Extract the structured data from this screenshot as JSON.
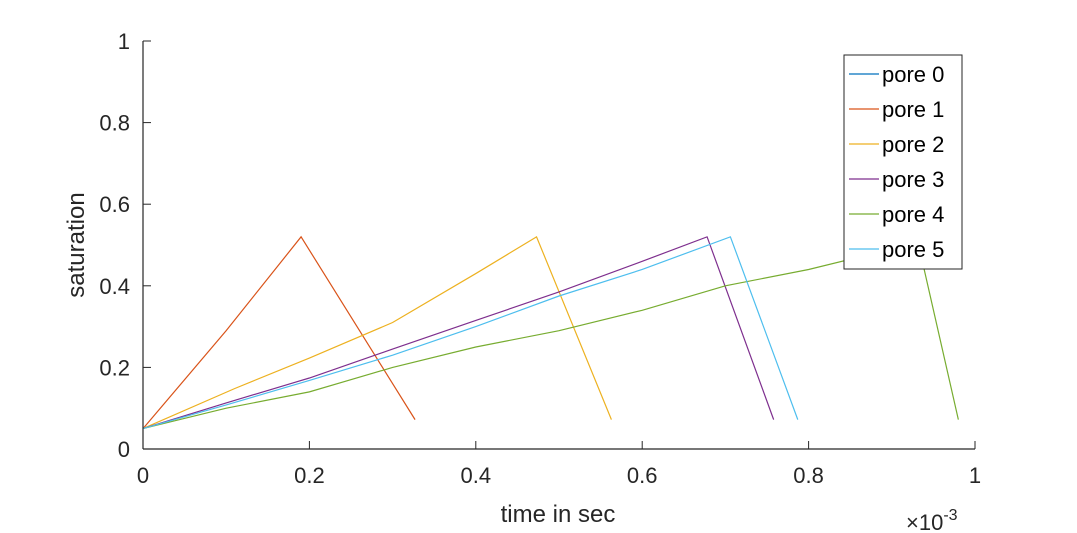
{
  "chart_data": {
    "type": "line",
    "title": "",
    "xlabel": "time in sec",
    "ylabel": "saturation",
    "x_exponent_label": "×10",
    "x_exponent_power": "-3",
    "xlim": [
      0,
      1
    ],
    "ylim": [
      0,
      1
    ],
    "x_ticks": [
      0,
      0.2,
      0.4,
      0.6,
      0.8,
      1
    ],
    "x_tick_labels": [
      "0",
      "0.2",
      "0.4",
      "0.6",
      "0.8",
      "1"
    ],
    "y_ticks": [
      0,
      0.2,
      0.4,
      0.6,
      0.8,
      1
    ],
    "y_tick_labels": [
      "0",
      "0.2",
      "0.4",
      "0.6",
      "0.8",
      "1"
    ],
    "grid": false,
    "legend_position": "top-right",
    "series": [
      {
        "name": "pore 0",
        "color": "#0072BD",
        "x": [
          0,
          0.003
        ],
        "y": [
          0.05,
          0.053
        ]
      },
      {
        "name": "pore 1",
        "color": "#D95319",
        "x": [
          0,
          0.1,
          0.19,
          0.327
        ],
        "y": [
          0.05,
          0.29,
          0.52,
          0.072
        ]
      },
      {
        "name": "pore 2",
        "color": "#EDB120",
        "x": [
          0,
          0.11,
          0.2,
          0.3,
          0.4,
          0.473,
          0.563
        ],
        "y": [
          0.05,
          0.148,
          0.223,
          0.31,
          0.43,
          0.52,
          0.072
        ]
      },
      {
        "name": "pore 3",
        "color": "#7E2F8E",
        "x": [
          0,
          0.1,
          0.2,
          0.3,
          0.4,
          0.5,
          0.6,
          0.678,
          0.758
        ],
        "y": [
          0.05,
          0.113,
          0.174,
          0.245,
          0.315,
          0.385,
          0.46,
          0.52,
          0.072
        ]
      },
      {
        "name": "pore 4",
        "color": "#77AC30",
        "x": [
          0,
          0.1,
          0.2,
          0.3,
          0.4,
          0.5,
          0.6,
          0.7,
          0.8,
          0.9,
          0.93,
          0.98
        ],
        "y": [
          0.05,
          0.1,
          0.14,
          0.2,
          0.25,
          0.29,
          0.34,
          0.4,
          0.44,
          0.49,
          0.52,
          0.072
        ]
      },
      {
        "name": "pore 5",
        "color": "#4DBEEE",
        "x": [
          0,
          0.1,
          0.2,
          0.3,
          0.4,
          0.5,
          0.6,
          0.706,
          0.787
        ],
        "y": [
          0.05,
          0.108,
          0.168,
          0.23,
          0.3,
          0.375,
          0.44,
          0.52,
          0.072
        ]
      }
    ]
  }
}
